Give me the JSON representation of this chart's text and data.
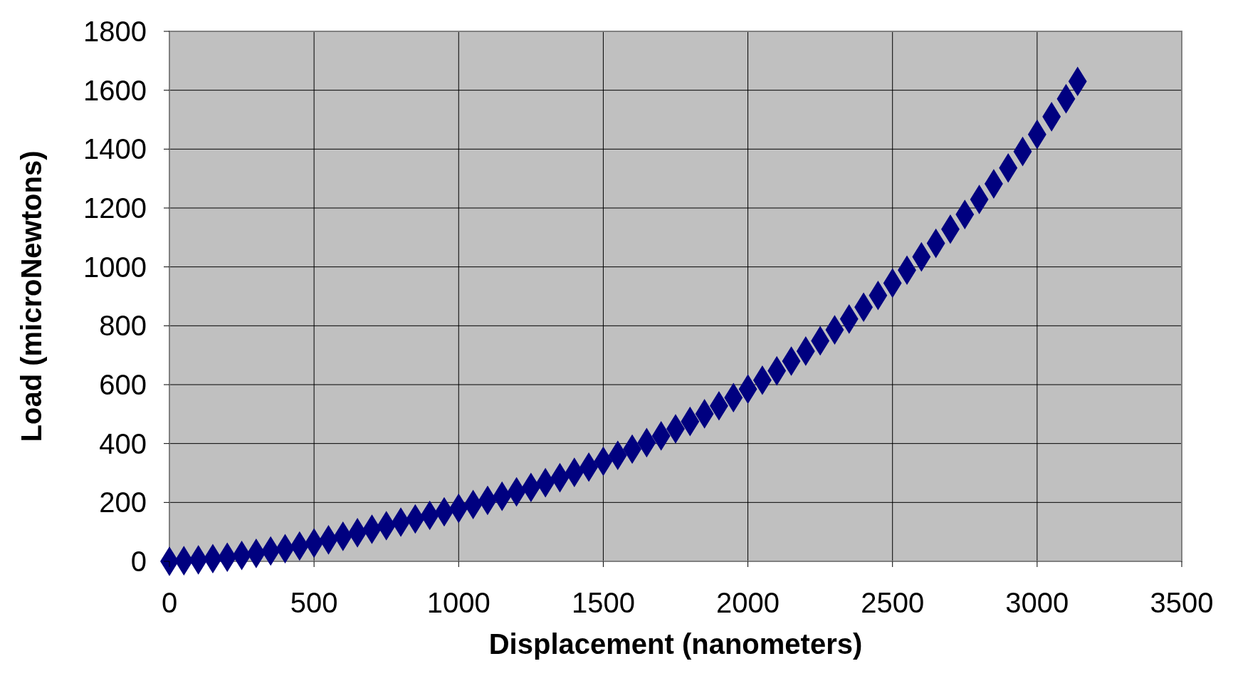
{
  "chart_data": {
    "type": "scatter",
    "xlabel": "Displacement (nanometers)",
    "ylabel": "Load (microNewtons)",
    "x": [
      0,
      50,
      100,
      150,
      200,
      250,
      300,
      350,
      400,
      450,
      500,
      550,
      600,
      650,
      700,
      750,
      800,
      850,
      900,
      950,
      1000,
      1050,
      1100,
      1150,
      1200,
      1250,
      1300,
      1350,
      1400,
      1450,
      1500,
      1550,
      1600,
      1650,
      1700,
      1750,
      1800,
      1850,
      1900,
      1950,
      2000,
      2050,
      2100,
      2150,
      2200,
      2250,
      2300,
      2350,
      2400,
      2450,
      2500,
      2550,
      2600,
      2650,
      2700,
      2750,
      2800,
      2850,
      2900,
      2950,
      3000,
      3050,
      3100,
      3140
    ],
    "series": [
      {
        "color": "#000080",
        "values": [
          0,
          2,
          5,
          9,
          14,
          20,
          27,
          35,
          43,
          52,
          62,
          73,
          85,
          97,
          109,
          121,
          133,
          144,
          156,
          168,
          180,
          193,
          207,
          221,
          236,
          251,
          267,
          284,
          302,
          320,
          340,
          360,
          381,
          403,
          426,
          450,
          475,
          501,
          528,
          556,
          585,
          615,
          647,
          680,
          714,
          749,
          786,
          823,
          863,
          903,
          945,
          989,
          1034,
          1080,
          1128,
          1178,
          1229,
          1282,
          1336,
          1392,
          1450,
          1510,
          1571,
          1630
        ]
      }
    ],
    "xlim": [
      0,
      3500
    ],
    "xticks": [
      0,
      500,
      1000,
      1500,
      2000,
      2500,
      3000,
      3500
    ],
    "ylim": [
      0,
      1800
    ],
    "yticks": [
      0,
      200,
      400,
      600,
      800,
      1000,
      1200,
      1400,
      1600,
      1800
    ],
    "grid": true,
    "marker": "diamond"
  }
}
